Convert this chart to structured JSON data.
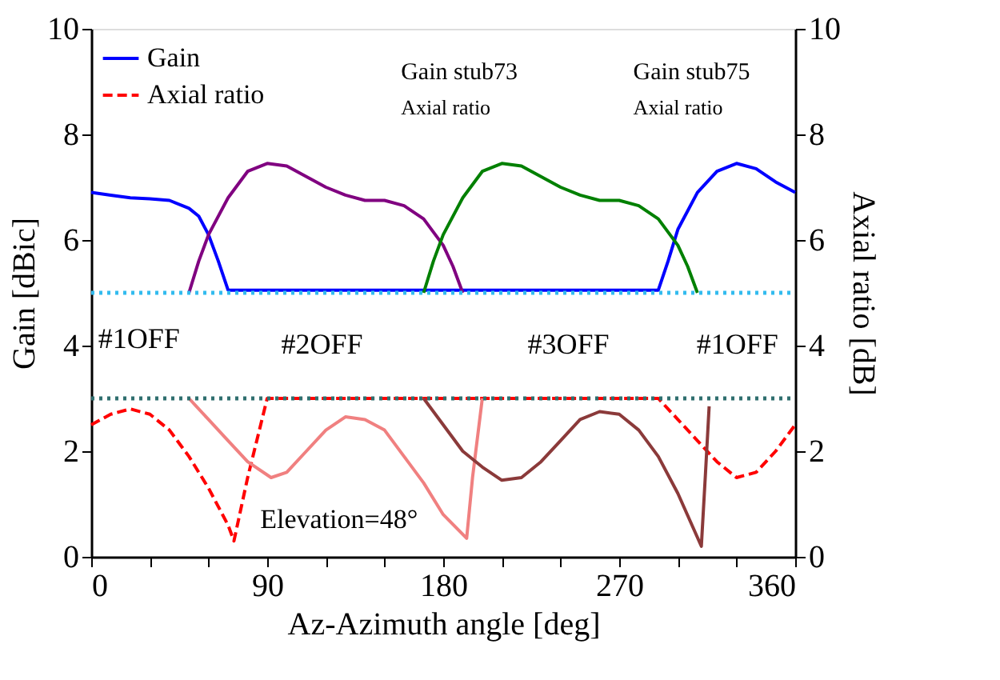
{
  "chart_data": {
    "type": "line",
    "xlabel": "Az-Azimuth angle [deg]",
    "ylabel": "Gain [dBic]",
    "y2label": "Axial ratio [dB]",
    "xlim": [
      0,
      360
    ],
    "xticks": [
      0,
      {
        "value": 30,
        "label": null
      },
      {
        "value": 60,
        "label": null
      },
      90,
      {
        "value": 120,
        "label": null
      },
      {
        "value": 150,
        "label": null
      },
      180,
      {
        "value": 210,
        "label": null
      },
      {
        "value": 240,
        "label": null
      },
      270,
      {
        "value": 300,
        "label": null
      },
      {
        "value": 330,
        "label": null
      },
      360
    ],
    "ylim": [
      0,
      10
    ],
    "yticks": [
      0,
      2,
      4,
      6,
      8,
      10
    ],
    "y2lim": [
      0,
      10
    ],
    "y2ticks": [
      0,
      2,
      4,
      6,
      8,
      10
    ],
    "grid": false,
    "legend": "top left",
    "marker": "none",
    "series": [
      {
        "name": "Gain",
        "color": "#0000ff",
        "line_style": "solid",
        "x": [
          0,
          10,
          20,
          30,
          40,
          50,
          55,
          60,
          65,
          70,
          100,
          150,
          200,
          250,
          290,
          295,
          300,
          310,
          320,
          330,
          340,
          350,
          360
        ],
        "values": [
          6.9,
          6.85,
          6.8,
          6.78,
          6.75,
          6.6,
          6.45,
          6.1,
          5.6,
          5.05,
          5.05,
          5.05,
          5.05,
          5.05,
          5.05,
          5.6,
          6.2,
          6.9,
          7.3,
          7.45,
          7.35,
          7.1,
          6.9
        ]
      },
      {
        "color": "#800080",
        "line_style": "solid",
        "x": [
          50,
          55,
          60,
          70,
          80,
          90,
          100,
          110,
          120,
          130,
          140,
          150,
          160,
          170,
          180,
          185,
          190
        ],
        "values": [
          5.0,
          5.6,
          6.1,
          6.8,
          7.3,
          7.45,
          7.4,
          7.2,
          7.0,
          6.85,
          6.75,
          6.75,
          6.65,
          6.4,
          5.9,
          5.5,
          5.0
        ]
      },
      {
        "color": "#008000",
        "line_style": "solid",
        "x": [
          170,
          175,
          180,
          190,
          200,
          210,
          220,
          230,
          240,
          250,
          260,
          270,
          280,
          290,
          300,
          305,
          310
        ],
        "values": [
          5.0,
          5.6,
          6.1,
          6.8,
          7.3,
          7.45,
          7.4,
          7.2,
          7.0,
          6.85,
          6.75,
          6.75,
          6.65,
          6.4,
          5.9,
          5.5,
          5.0
        ]
      },
      {
        "name": "Axial ratio",
        "color": "#ff0000",
        "line_style": "dashed",
        "axis": "y2",
        "x": [
          0,
          10,
          20,
          30,
          40,
          50,
          60,
          70,
          73,
          80,
          90,
          150,
          200,
          250,
          290,
          300,
          310,
          320,
          330,
          340,
          350,
          360
        ],
        "values": [
          2.5,
          2.7,
          2.8,
          2.7,
          2.4,
          1.9,
          1.3,
          0.6,
          0.3,
          1.5,
          3,
          3,
          3,
          3,
          3,
          2.6,
          2.2,
          1.8,
          1.5,
          1.6,
          2.0,
          2.5
        ]
      },
      {
        "color": "#f08080",
        "line_style": "solid",
        "axis": "y2",
        "x": [
          50,
          60,
          70,
          80,
          92,
          100,
          110,
          120,
          130,
          140,
          150,
          160,
          170,
          180,
          192,
          195,
          200
        ],
        "values": [
          3,
          2.6,
          2.2,
          1.8,
          1.5,
          1.6,
          2.0,
          2.4,
          2.65,
          2.6,
          2.4,
          1.9,
          1.4,
          0.8,
          0.35,
          1.5,
          3.0
        ]
      },
      {
        "color": "#8b3a3a",
        "line_style": "solid",
        "axis": "y2",
        "x": [
          170,
          180,
          190,
          200,
          210,
          220,
          230,
          240,
          250,
          260,
          270,
          280,
          290,
          300,
          312,
          314,
          316
        ],
        "values": [
          3,
          2.5,
          2.0,
          1.7,
          1.45,
          1.5,
          1.8,
          2.2,
          2.6,
          2.75,
          2.7,
          2.4,
          1.9,
          1.2,
          0.2,
          1.5,
          2.85
        ]
      }
    ],
    "ref_lines": [
      {
        "axis": "y",
        "value": 5,
        "color": "#33bbee",
        "line_style": "dotted"
      },
      {
        "axis": "y2",
        "value": 3,
        "color": "#2f6f6f",
        "line_style": "dotted"
      }
    ],
    "annotations": [
      "Gain stub73",
      "Axial ratio",
      "Gain stub75",
      "Axial ratio",
      "#1OFF",
      "#2OFF",
      "#3OFF",
      "#1OFF",
      "Elevation=48°"
    ]
  }
}
